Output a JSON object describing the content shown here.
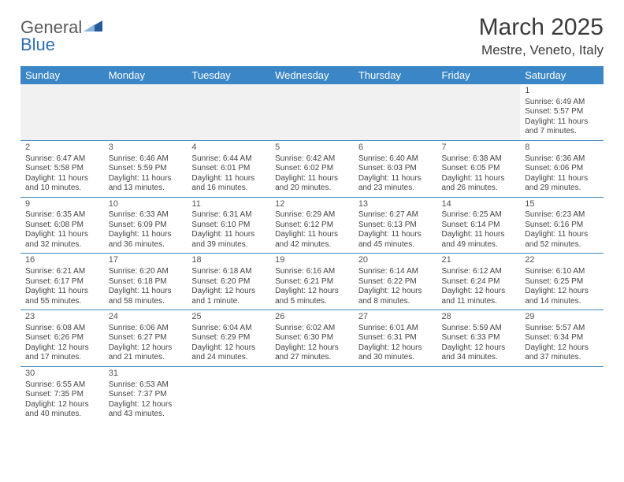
{
  "brand": {
    "name_a": "General",
    "name_b": "Blue",
    "flag_color": "#255b9a"
  },
  "title": "March 2025",
  "location": "Mestre, Veneto, Italy",
  "colors": {
    "header_bg": "#3b86c6",
    "header_text": "#ffffff",
    "border": "#3b86c6",
    "empty_bg": "#f1f1f1",
    "text": "#444444",
    "title_text": "#3a3a3a"
  },
  "weekdays": [
    "Sunday",
    "Monday",
    "Tuesday",
    "Wednesday",
    "Thursday",
    "Friday",
    "Saturday"
  ],
  "weeks": [
    [
      null,
      null,
      null,
      null,
      null,
      null,
      {
        "n": "1",
        "sunrise": "6:49 AM",
        "sunset": "5:57 PM",
        "daylight": "11 hours and 7 minutes."
      }
    ],
    [
      {
        "n": "2",
        "sunrise": "6:47 AM",
        "sunset": "5:58 PM",
        "daylight": "11 hours and 10 minutes."
      },
      {
        "n": "3",
        "sunrise": "6:46 AM",
        "sunset": "5:59 PM",
        "daylight": "11 hours and 13 minutes."
      },
      {
        "n": "4",
        "sunrise": "6:44 AM",
        "sunset": "6:01 PM",
        "daylight": "11 hours and 16 minutes."
      },
      {
        "n": "5",
        "sunrise": "6:42 AM",
        "sunset": "6:02 PM",
        "daylight": "11 hours and 20 minutes."
      },
      {
        "n": "6",
        "sunrise": "6:40 AM",
        "sunset": "6:03 PM",
        "daylight": "11 hours and 23 minutes."
      },
      {
        "n": "7",
        "sunrise": "6:38 AM",
        "sunset": "6:05 PM",
        "daylight": "11 hours and 26 minutes."
      },
      {
        "n": "8",
        "sunrise": "6:36 AM",
        "sunset": "6:06 PM",
        "daylight": "11 hours and 29 minutes."
      }
    ],
    [
      {
        "n": "9",
        "sunrise": "6:35 AM",
        "sunset": "6:08 PM",
        "daylight": "11 hours and 32 minutes."
      },
      {
        "n": "10",
        "sunrise": "6:33 AM",
        "sunset": "6:09 PM",
        "daylight": "11 hours and 36 minutes."
      },
      {
        "n": "11",
        "sunrise": "6:31 AM",
        "sunset": "6:10 PM",
        "daylight": "11 hours and 39 minutes."
      },
      {
        "n": "12",
        "sunrise": "6:29 AM",
        "sunset": "6:12 PM",
        "daylight": "11 hours and 42 minutes."
      },
      {
        "n": "13",
        "sunrise": "6:27 AM",
        "sunset": "6:13 PM",
        "daylight": "11 hours and 45 minutes."
      },
      {
        "n": "14",
        "sunrise": "6:25 AM",
        "sunset": "6:14 PM",
        "daylight": "11 hours and 49 minutes."
      },
      {
        "n": "15",
        "sunrise": "6:23 AM",
        "sunset": "6:16 PM",
        "daylight": "11 hours and 52 minutes."
      }
    ],
    [
      {
        "n": "16",
        "sunrise": "6:21 AM",
        "sunset": "6:17 PM",
        "daylight": "11 hours and 55 minutes."
      },
      {
        "n": "17",
        "sunrise": "6:20 AM",
        "sunset": "6:18 PM",
        "daylight": "11 hours and 58 minutes."
      },
      {
        "n": "18",
        "sunrise": "6:18 AM",
        "sunset": "6:20 PM",
        "daylight": "12 hours and 1 minute."
      },
      {
        "n": "19",
        "sunrise": "6:16 AM",
        "sunset": "6:21 PM",
        "daylight": "12 hours and 5 minutes."
      },
      {
        "n": "20",
        "sunrise": "6:14 AM",
        "sunset": "6:22 PM",
        "daylight": "12 hours and 8 minutes."
      },
      {
        "n": "21",
        "sunrise": "6:12 AM",
        "sunset": "6:24 PM",
        "daylight": "12 hours and 11 minutes."
      },
      {
        "n": "22",
        "sunrise": "6:10 AM",
        "sunset": "6:25 PM",
        "daylight": "12 hours and 14 minutes."
      }
    ],
    [
      {
        "n": "23",
        "sunrise": "6:08 AM",
        "sunset": "6:26 PM",
        "daylight": "12 hours and 17 minutes."
      },
      {
        "n": "24",
        "sunrise": "6:06 AM",
        "sunset": "6:27 PM",
        "daylight": "12 hours and 21 minutes."
      },
      {
        "n": "25",
        "sunrise": "6:04 AM",
        "sunset": "6:29 PM",
        "daylight": "12 hours and 24 minutes."
      },
      {
        "n": "26",
        "sunrise": "6:02 AM",
        "sunset": "6:30 PM",
        "daylight": "12 hours and 27 minutes."
      },
      {
        "n": "27",
        "sunrise": "6:01 AM",
        "sunset": "6:31 PM",
        "daylight": "12 hours and 30 minutes."
      },
      {
        "n": "28",
        "sunrise": "5:59 AM",
        "sunset": "6:33 PM",
        "daylight": "12 hours and 34 minutes."
      },
      {
        "n": "29",
        "sunrise": "5:57 AM",
        "sunset": "6:34 PM",
        "daylight": "12 hours and 37 minutes."
      }
    ],
    [
      {
        "n": "30",
        "sunrise": "6:55 AM",
        "sunset": "7:35 PM",
        "daylight": "12 hours and 40 minutes."
      },
      {
        "n": "31",
        "sunrise": "6:53 AM",
        "sunset": "7:37 PM",
        "daylight": "12 hours and 43 minutes."
      },
      null,
      null,
      null,
      null,
      null
    ]
  ],
  "labels": {
    "sunrise": "Sunrise:",
    "sunset": "Sunset:",
    "daylight": "Daylight:"
  }
}
